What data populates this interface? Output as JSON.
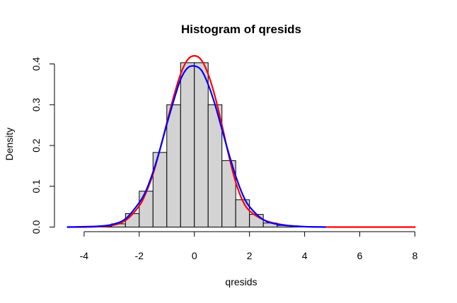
{
  "chart_data": {
    "type": "bar",
    "title": "Histogram of qresids",
    "xlabel": "qresids",
    "ylabel": "Density",
    "xlim": [
      -4.6,
      8
    ],
    "ylim": [
      0,
      0.42
    ],
    "x_ticks": [
      -4,
      -2,
      0,
      2,
      4,
      6,
      8
    ],
    "y_ticks": [
      0.0,
      0.1,
      0.2,
      0.3,
      0.4
    ],
    "y_tick_labels": [
      "0.0",
      "0.1",
      "0.2",
      "0.3",
      "0.4"
    ],
    "bins": [
      {
        "start": -3.5,
        "end": -3.0,
        "density": 0.001
      },
      {
        "start": -3.0,
        "end": -2.5,
        "density": 0.008
      },
      {
        "start": -2.5,
        "end": -2.0,
        "density": 0.033
      },
      {
        "start": -2.0,
        "end": -1.5,
        "density": 0.088
      },
      {
        "start": -1.5,
        "end": -1.0,
        "density": 0.183
      },
      {
        "start": -1.0,
        "end": -0.5,
        "density": 0.3
      },
      {
        "start": -0.5,
        "end": 0.0,
        "density": 0.403
      },
      {
        "start": 0.0,
        "end": 0.5,
        "density": 0.403
      },
      {
        "start": 0.5,
        "end": 1.0,
        "density": 0.3
      },
      {
        "start": 1.0,
        "end": 1.5,
        "density": 0.163
      },
      {
        "start": 1.5,
        "end": 2.0,
        "density": 0.067
      },
      {
        "start": 2.0,
        "end": 2.5,
        "density": 0.031
      },
      {
        "start": 2.5,
        "end": 3.0,
        "density": 0.01
      },
      {
        "start": 3.0,
        "end": 3.5,
        "density": 0.004
      },
      {
        "start": 3.5,
        "end": 4.0,
        "density": 0.001
      }
    ],
    "series": [
      {
        "color": "#ff0000",
        "x": [
          -4.6,
          -4.0,
          -3.5,
          -3.0,
          -2.5,
          -2.0,
          -1.75,
          -1.5,
          -1.25,
          -1.0,
          -0.75,
          -0.5,
          -0.25,
          0.0,
          0.25,
          0.5,
          0.75,
          1.0,
          1.25,
          1.5,
          1.75,
          2.0,
          2.5,
          3.0,
          3.5,
          4.0,
          5.0,
          6.0,
          7.0,
          8.0
        ],
        "y": [
          0.0,
          0.0,
          0.001,
          0.004,
          0.016,
          0.052,
          0.085,
          0.13,
          0.19,
          0.255,
          0.32,
          0.375,
          0.41,
          0.42,
          0.41,
          0.375,
          0.32,
          0.25,
          0.175,
          0.11,
          0.065,
          0.04,
          0.018,
          0.008,
          0.003,
          0.001,
          0.0,
          0.0,
          0.0,
          0.0
        ]
      },
      {
        "color": "#0000ff",
        "x": [
          -4.6,
          -4.0,
          -3.5,
          -3.0,
          -2.5,
          -2.0,
          -1.75,
          -1.5,
          -1.25,
          -1.0,
          -0.75,
          -0.5,
          -0.25,
          0.0,
          0.25,
          0.5,
          0.75,
          1.0,
          1.25,
          1.5,
          1.75,
          2.0,
          2.5,
          3.0,
          3.5,
          4.0,
          4.75
        ],
        "y": [
          0.0,
          0.001,
          0.002,
          0.006,
          0.02,
          0.06,
          0.09,
          0.135,
          0.19,
          0.252,
          0.31,
          0.362,
          0.39,
          0.395,
          0.385,
          0.35,
          0.3,
          0.24,
          0.18,
          0.125,
          0.08,
          0.05,
          0.018,
          0.007,
          0.003,
          0.001,
          0.0
        ]
      }
    ]
  }
}
